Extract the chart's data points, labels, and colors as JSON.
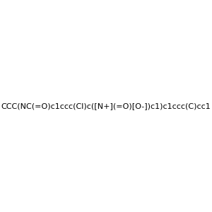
{
  "smiles": "CCC(NC(=O)c1ccc(Cl)c([N+](=O)[O-])c1)c1ccc(C)cc1",
  "image_size": 300,
  "background_color": "#f0f0f0",
  "title": "",
  "dpi": 100
}
